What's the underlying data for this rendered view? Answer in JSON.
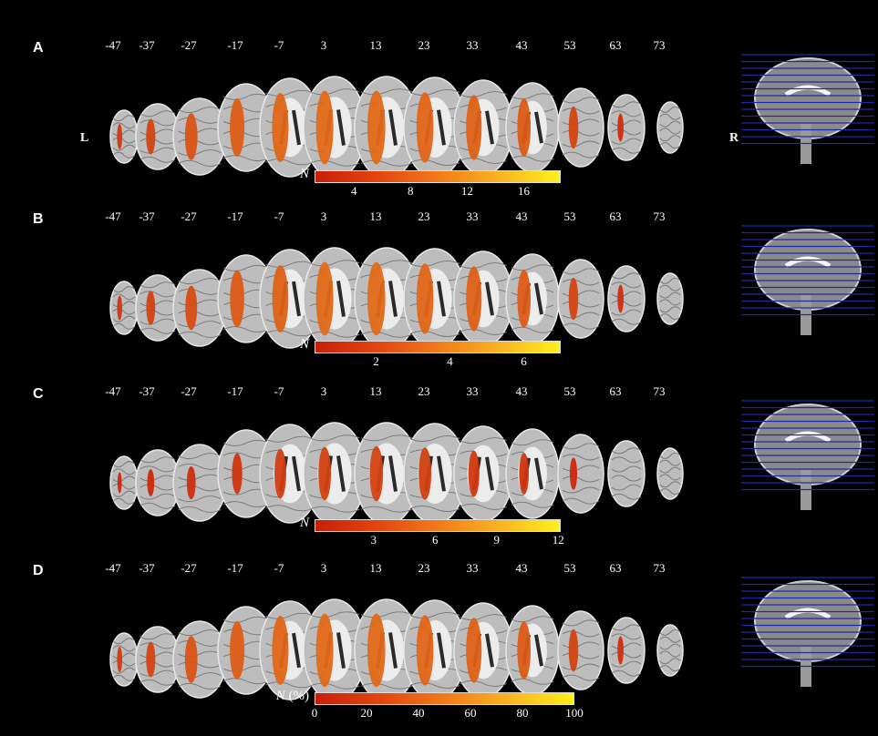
{
  "coordinates": [
    "-47",
    "-37",
    "-27",
    "-17",
    "-7",
    "3",
    "13",
    "23",
    "33",
    "43",
    "53",
    "63",
    "73"
  ],
  "left_label": "L",
  "right_label": "R",
  "panels": [
    {
      "letter": "A",
      "cbar_label": "N",
      "cbar_unit": "",
      "ticks": [
        "4",
        "8",
        "12",
        "16"
      ],
      "tick_fracs": [
        0.16,
        0.39,
        0.62,
        0.85
      ],
      "intensity": [
        0.35,
        0.5,
        0.7,
        0.85,
        0.95,
        1.0,
        1.0,
        0.95,
        0.9,
        0.8,
        0.5,
        0.2,
        0
      ]
    },
    {
      "letter": "B",
      "cbar_label": "N",
      "cbar_unit": "",
      "ticks": [
        "2",
        "4",
        "6"
      ],
      "tick_fracs": [
        0.25,
        0.55,
        0.85
      ],
      "intensity": [
        0.3,
        0.45,
        0.6,
        0.8,
        0.9,
        1.0,
        1.0,
        0.95,
        0.9,
        0.8,
        0.5,
        0.2,
        0
      ]
    },
    {
      "letter": "C",
      "cbar_label": "N",
      "cbar_unit": "",
      "ticks": [
        "3",
        "6",
        "9",
        "12"
      ],
      "tick_fracs": [
        0.24,
        0.49,
        0.74,
        0.99
      ],
      "intensity": [
        0.1,
        0.15,
        0.2,
        0.3,
        0.4,
        0.45,
        0.5,
        0.45,
        0.35,
        0.3,
        0.15,
        0,
        0
      ]
    },
    {
      "letter": "D",
      "cbar_label": "N",
      "cbar_unit": "(%)",
      "ticks": [
        "0",
        "20",
        "40",
        "60",
        "80",
        "100"
      ],
      "tick_fracs": [
        0,
        0.2,
        0.4,
        0.6,
        0.8,
        1.0
      ],
      "intensity": [
        0.35,
        0.5,
        0.7,
        0.85,
        0.95,
        1.0,
        1.0,
        0.95,
        0.9,
        0.8,
        0.5,
        0.2,
        0
      ]
    }
  ],
  "colors": {
    "lesion_low": "#c81e0a",
    "lesion_high": "#f5a623",
    "slice_line": "#1a2aa8"
  }
}
